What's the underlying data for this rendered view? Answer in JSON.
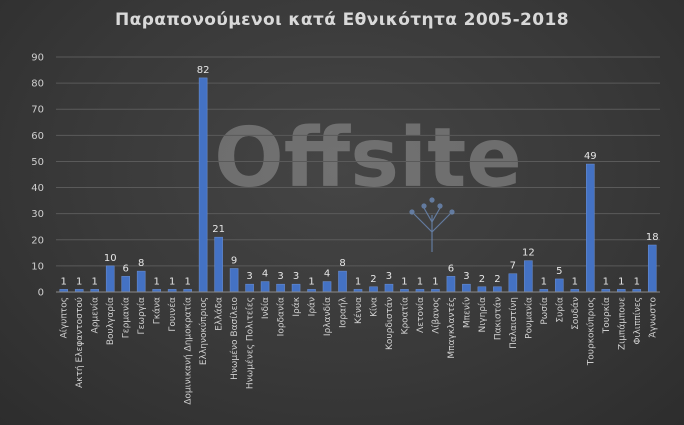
{
  "watermark": "Offsite",
  "chart_data": {
    "type": "bar",
    "title": "Παραπονούμενοι κατά Εθνικότητα 2005-2018",
    "xlabel": "",
    "ylabel": "",
    "ylim": [
      0,
      90
    ],
    "yticks": [
      0,
      10,
      20,
      30,
      40,
      50,
      60,
      70,
      80,
      90
    ],
    "grid": true,
    "legend": "none",
    "bar_color": "#4472c4",
    "categories": [
      "Αίγυπτος",
      "Ακτή Ελεφαντοστού",
      "Αρμενία",
      "Βουλγαρία",
      "Γερμανία",
      "Γεωργία",
      "Γκάνα",
      "Γουινέα",
      "Δομινικανή Δημοκρατία",
      "Ελληνοκύπριος",
      "Ελλάδα",
      "Ηνωμένο Βασίλειο",
      "Ηνωμένες Πολιτείες",
      "Ινδία",
      "Ιορδανία",
      "Ιράκ",
      "Ιράν",
      "Ιρλανδία",
      "Ισραήλ",
      "Κένυα",
      "Κίνα",
      "Κουρδιστάν",
      "Κροατία",
      "Λετονία",
      "Λίβανος",
      "Μπαγκλαντές",
      "Μπενίν",
      "Νιγηρία",
      "Πακιστάν",
      "Παλαιστίνη",
      "Ρουμανία",
      "Ρωσία",
      "Συρία",
      "Σουδάν",
      "Τουρκοκύπριος",
      "Τουρκία",
      "Ζιμπάμπουε",
      "Φιλιππίνες",
      "Άγνωστο"
    ],
    "values": [
      1,
      1,
      1,
      10,
      6,
      8,
      1,
      1,
      1,
      82,
      21,
      9,
      3,
      4,
      3,
      3,
      1,
      4,
      8,
      1,
      2,
      3,
      1,
      1,
      1,
      6,
      3,
      2,
      2,
      7,
      12,
      1,
      5,
      1,
      49,
      1,
      1,
      1,
      18
    ]
  }
}
